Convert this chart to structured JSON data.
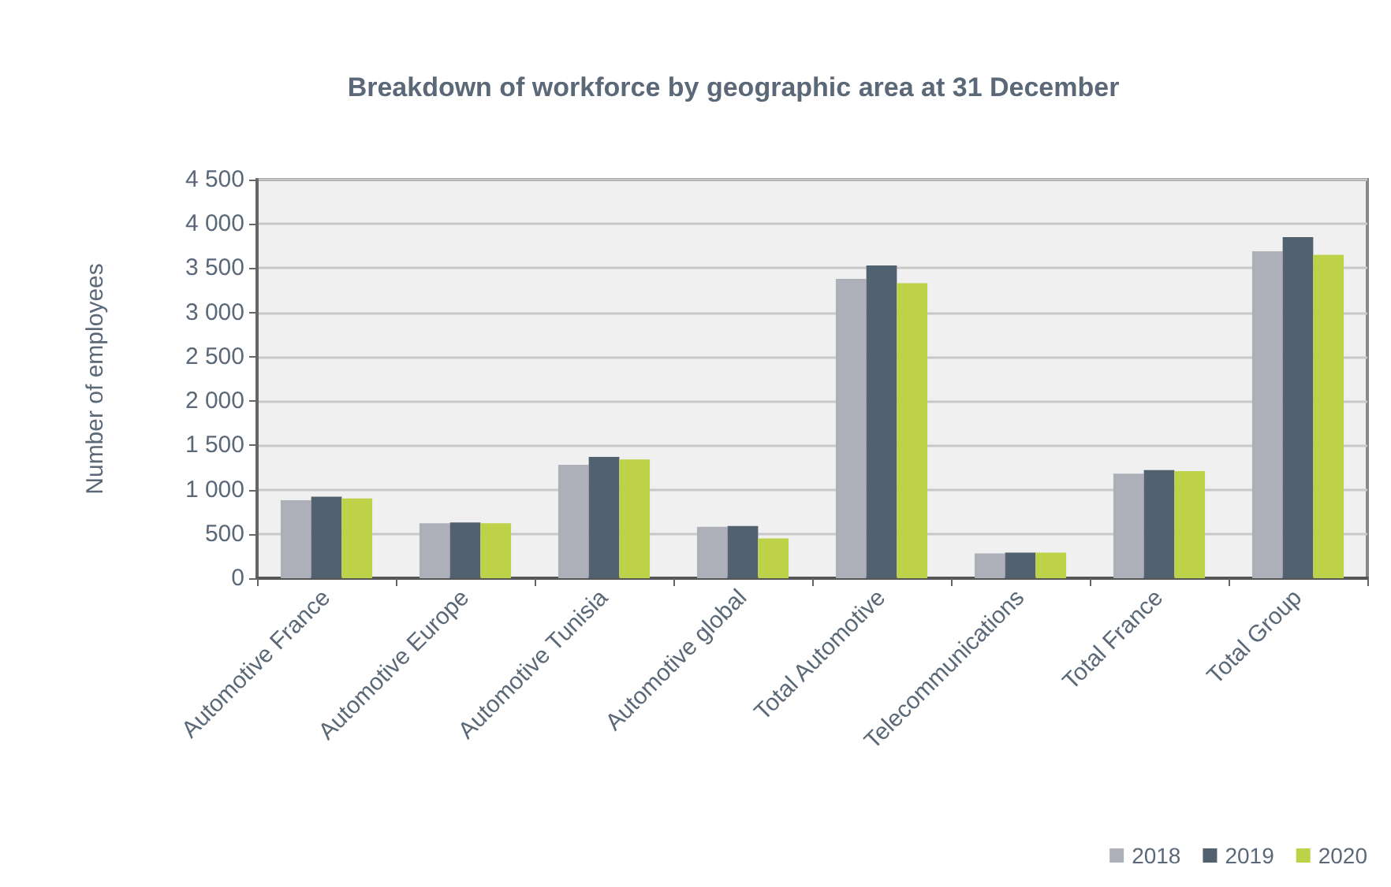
{
  "chart_data": {
    "type": "bar",
    "title": "Breakdown of workforce by geographic area at 31 December",
    "ylabel": "Number of employees",
    "categories": [
      "Automotive France",
      "Automotive Europe",
      "Automotive Tunisia",
      "Automotive global",
      "Total Automotive",
      "Telecommunications",
      "Total France",
      "Total Group"
    ],
    "series": [
      {
        "name": "2018",
        "color": "#adb0b8",
        "values": [
          880,
          620,
          1280,
          580,
          3380,
          280,
          1180,
          3690
        ]
      },
      {
        "name": "2019",
        "color": "#52616f",
        "values": [
          920,
          630,
          1370,
          590,
          3530,
          290,
          1220,
          3850
        ]
      },
      {
        "name": "2020",
        "color": "#bdd248",
        "values": [
          900,
          620,
          1340,
          450,
          3330,
          290,
          1210,
          3650
        ]
      }
    ],
    "ylim": [
      0,
      4500
    ],
    "yticks": [
      0,
      500,
      {
        "value": 1000,
        "label": "1 000"
      },
      {
        "value": 1500,
        "label": "1 500"
      },
      {
        "value": 2000,
        "label": "2 000"
      },
      {
        "value": 2500,
        "label": "2 500"
      },
      {
        "value": 3000,
        "label": "3 000"
      },
      {
        "value": 3500,
        "label": "3 500"
      },
      {
        "value": 4000,
        "label": "4 000"
      },
      {
        "value": 4500,
        "label": "4 500"
      }
    ],
    "grid": "y",
    "legend": "bottom right"
  }
}
